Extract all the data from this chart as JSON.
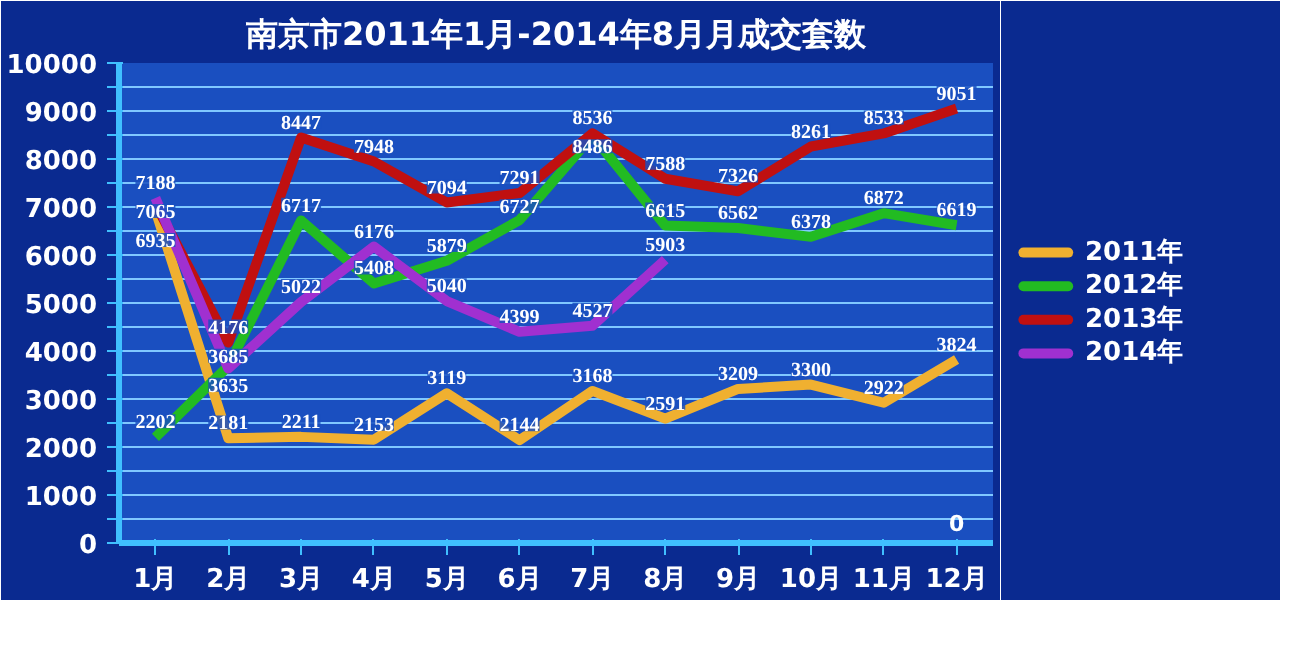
{
  "chart_data": {
    "type": "line",
    "title": "南京市2011年1月-2014年8月月成交套数",
    "categories": [
      "1月",
      "2月",
      "3月",
      "4月",
      "5月",
      "6月",
      "7月",
      "8月",
      "9月",
      "10月",
      "11月",
      "12月"
    ],
    "series": [
      {
        "name": "2011年",
        "color": "#f0b030",
        "values": [
          6935,
          2181,
          2211,
          2153,
          3119,
          2144,
          3168,
          2591,
          3209,
          3300,
          2922,
          3824
        ]
      },
      {
        "name": "2012年",
        "color": "#22bb22",
        "values": [
          2202,
          3685,
          6717,
          5408,
          5879,
          6727,
          8486,
          6615,
          6562,
          6378,
          6872,
          6619
        ]
      },
      {
        "name": "2013年",
        "color": "#c01010",
        "values": [
          7065,
          4176,
          8447,
          7948,
          7094,
          7291,
          8536,
          7588,
          7326,
          8261,
          8533,
          9051
        ]
      },
      {
        "name": "2014年",
        "color": "#a030d0",
        "values": [
          7188,
          3635,
          5022,
          6176,
          5040,
          4399,
          4527,
          5903,
          null,
          null,
          null,
          null
        ]
      }
    ],
    "ylim": [
      0,
      10000
    ],
    "yticks": [
      0,
      {
        "value": 500,
        "label": null
      },
      1000,
      {
        "value": 1500,
        "label": null
      },
      2000,
      {
        "value": 2500,
        "label": null
      },
      3000,
      {
        "value": 3500,
        "label": null
      },
      4000,
      {
        "value": 4500,
        "label": null
      },
      5000,
      {
        "value": 5500,
        "label": null
      },
      6000,
      {
        "value": 6500,
        "label": null
      },
      7000,
      {
        "value": 7500,
        "label": null
      },
      8000,
      {
        "value": 8500,
        "label": null
      },
      9000,
      {
        "value": 9500,
        "label": null
      },
      10000
    ],
    "grid": "y",
    "legend": "right",
    "data_labels": true,
    "marker": "none",
    "line_style": "solid",
    "annotations": [
      "0"
    ]
  }
}
